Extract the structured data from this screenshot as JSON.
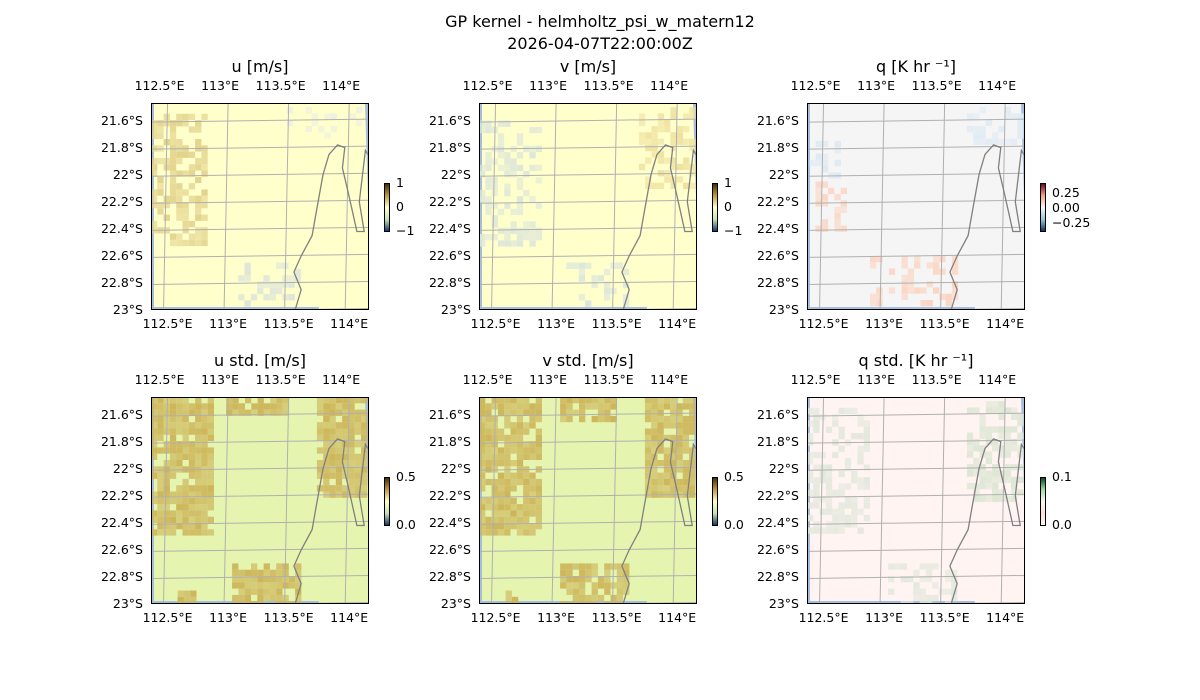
{
  "figure": {
    "title_line1": "GP kernel - helmholtz_psi_w_matern12",
    "title_line2": "2026-04-07T22:00:00Z"
  },
  "chart_data": [
    {
      "type": "heatmap",
      "title": "u [m/s]",
      "x_ticks": [
        "112.5°E",
        "113°E",
        "113.5°E",
        "114°E"
      ],
      "y_ticks": [
        "21.6°S",
        "21.8°S",
        "22°S",
        "22.2°S",
        "22.4°S",
        "22.6°S",
        "22.8°S",
        "23°S"
      ],
      "xlim": [
        112.38,
        114.18
      ],
      "ylim": [
        -23.0,
        -21.47
      ],
      "colorbar": {
        "ticks": [
          "1",
          "0",
          "−1"
        ],
        "range": [
          -1,
          1
        ]
      },
      "fill_color": "#ffffcc",
      "blobs": [
        {
          "lon": [
            112.38,
            112.8
          ],
          "lat": [
            -22.5,
            -21.55
          ],
          "color": "#e3d38c",
          "density": 0.55
        },
        {
          "lon": [
            113.1,
            113.6
          ],
          "lat": [
            -22.95,
            -22.65
          ],
          "color": "#dfe6d8",
          "density": 0.35
        },
        {
          "lon": [
            113.5,
            114.1
          ],
          "lat": [
            -21.7,
            -21.5
          ],
          "color": "#eef0e0",
          "density": 0.25
        }
      ]
    },
    {
      "type": "heatmap",
      "title": "v [m/s]",
      "x_ticks": [
        "112.5°E",
        "113°E",
        "113.5°E",
        "114°E"
      ],
      "y_ticks": [
        "21.6°S",
        "21.8°S",
        "22°S",
        "22.2°S",
        "22.4°S",
        "22.6°S",
        "22.8°S",
        "23°S"
      ],
      "xlim": [
        112.38,
        114.18
      ],
      "ylim": [
        -23.0,
        -21.47
      ],
      "colorbar": {
        "ticks": [
          "1",
          "0",
          "−1"
        ],
        "range": [
          -1,
          1
        ]
      },
      "fill_color": "#ffffcc",
      "blobs": [
        {
          "lon": [
            112.38,
            112.85
          ],
          "lat": [
            -22.5,
            -21.6
          ],
          "color": "#dfe8d8",
          "density": 0.45
        },
        {
          "lon": [
            113.1,
            113.6
          ],
          "lat": [
            -22.95,
            -22.65
          ],
          "color": "#dce6dc",
          "density": 0.35
        },
        {
          "lon": [
            113.7,
            114.15
          ],
          "lat": [
            -22.1,
            -21.5
          ],
          "color": "#efe2a0",
          "density": 0.5
        }
      ]
    },
    {
      "type": "heatmap",
      "title": "q [K hr ⁻¹]",
      "x_ticks": [
        "112.5°E",
        "113°E",
        "113.5°E",
        "114°E"
      ],
      "y_ticks": [
        "21.6°S",
        "21.8°S",
        "22°S",
        "22.2°S",
        "22.4°S",
        "22.6°S",
        "22.8°S",
        "23°S"
      ],
      "xlim": [
        112.38,
        114.18
      ],
      "ylim": [
        -23.0,
        -21.47
      ],
      "colorbar": {
        "ticks": [
          "0.25",
          "0.00",
          "−0.25"
        ],
        "range": [
          -0.25,
          0.25
        ]
      },
      "fill_color": "#f5f5f5",
      "blobs": [
        {
          "lon": [
            112.45,
            112.7
          ],
          "lat": [
            -22.4,
            -22.05
          ],
          "color": "#fbd8c8",
          "density": 0.5
        },
        {
          "lon": [
            112.4,
            112.65
          ],
          "lat": [
            -22.0,
            -21.75
          ],
          "color": "#dde9f3",
          "density": 0.4
        },
        {
          "lon": [
            112.9,
            113.6
          ],
          "lat": [
            -22.95,
            -22.6
          ],
          "color": "#fbd5c2",
          "density": 0.45
        },
        {
          "lon": [
            113.7,
            114.15
          ],
          "lat": [
            -21.75,
            -21.5
          ],
          "color": "#e0ebf4",
          "density": 0.35
        }
      ]
    },
    {
      "type": "heatmap",
      "title": "u std. [m/s]",
      "x_ticks": [
        "112.5°E",
        "113°E",
        "113.5°E",
        "114°E"
      ],
      "y_ticks": [
        "21.6°S",
        "21.8°S",
        "22°S",
        "22.2°S",
        "22.4°S",
        "22.6°S",
        "22.8°S",
        "23°S"
      ],
      "xlim": [
        112.38,
        114.18
      ],
      "ylim": [
        -23.0,
        -21.47
      ],
      "colorbar": {
        "ticks": [
          "0.5",
          "0.0"
        ],
        "range": [
          0.0,
          0.5
        ]
      },
      "fill_color": "#e5f5b0",
      "blobs": [
        {
          "lon": [
            112.38,
            112.9
          ],
          "lat": [
            -22.45,
            -21.47
          ],
          "color": "#cdb55a",
          "density": 0.85
        },
        {
          "lon": [
            113.0,
            113.5
          ],
          "lat": [
            -21.6,
            -21.47
          ],
          "color": "#cdb55a",
          "density": 0.85
        },
        {
          "lon": [
            113.75,
            114.15
          ],
          "lat": [
            -22.2,
            -21.47
          ],
          "color": "#cdb55a",
          "density": 0.85
        },
        {
          "lon": [
            113.05,
            113.6
          ],
          "lat": [
            -23.0,
            -22.7
          ],
          "color": "#cdb55a",
          "density": 0.8
        },
        {
          "lon": [
            112.6,
            112.75
          ],
          "lat": [
            -23.0,
            -22.9
          ],
          "color": "#cdb55a",
          "density": 0.6
        }
      ]
    },
    {
      "type": "heatmap",
      "title": "v std. [m/s]",
      "x_ticks": [
        "112.5°E",
        "113°E",
        "113.5°E",
        "114°E"
      ],
      "y_ticks": [
        "21.6°S",
        "21.8°S",
        "22°S",
        "22.2°S",
        "22.4°S",
        "22.6°S",
        "22.8°S",
        "23°S"
      ],
      "xlim": [
        112.38,
        114.18
      ],
      "ylim": [
        -23.0,
        -21.47
      ],
      "colorbar": {
        "ticks": [
          "0.5",
          "0.0"
        ],
        "range": [
          0.0,
          0.5
        ]
      },
      "fill_color": "#e5f5b0",
      "blobs": [
        {
          "lon": [
            112.38,
            112.9
          ],
          "lat": [
            -22.45,
            -21.47
          ],
          "color": "#cdb55a",
          "density": 0.85
        },
        {
          "lon": [
            113.05,
            113.5
          ],
          "lat": [
            -21.65,
            -21.47
          ],
          "color": "#cdb55a",
          "density": 0.85
        },
        {
          "lon": [
            113.75,
            114.15
          ],
          "lat": [
            -22.2,
            -21.47
          ],
          "color": "#cdb55a",
          "density": 0.85
        },
        {
          "lon": [
            113.05,
            113.6
          ],
          "lat": [
            -23.0,
            -22.7
          ],
          "color": "#cdb55a",
          "density": 0.8
        },
        {
          "lon": [
            112.6,
            112.75
          ],
          "lat": [
            -23.0,
            -22.9
          ],
          "color": "#cdb55a",
          "density": 0.6
        }
      ]
    },
    {
      "type": "heatmap",
      "title": "q std. [K hr ⁻¹]",
      "x_ticks": [
        "112.5°E",
        "113°E",
        "113.5°E",
        "114°E"
      ],
      "y_ticks": [
        "21.6°S",
        "21.8°S",
        "22°S",
        "22.2°S",
        "22.4°S",
        "22.6°S",
        "22.8°S",
        "23°S"
      ],
      "xlim": [
        112.38,
        114.18
      ],
      "ylim": [
        -23.0,
        -21.47
      ],
      "colorbar": {
        "ticks": [
          "0.1",
          "0.0"
        ],
        "range": [
          0.0,
          0.1
        ]
      },
      "fill_color": "#fff4f1",
      "blobs": [
        {
          "lon": [
            112.38,
            112.85
          ],
          "lat": [
            -22.45,
            -21.55
          ],
          "color": "#e3e8dc",
          "density": 0.5
        },
        {
          "lon": [
            113.7,
            114.15
          ],
          "lat": [
            -22.2,
            -21.5
          ],
          "color": "#dde6d4",
          "density": 0.55
        },
        {
          "lon": [
            113.05,
            113.6
          ],
          "lat": [
            -23.0,
            -22.7
          ],
          "color": "#e3e8dc",
          "density": 0.45
        }
      ]
    }
  ],
  "colors": {
    "ocean_edge": "#a6bddb",
    "grid": "#b0b0b0",
    "coast": "#808080"
  }
}
